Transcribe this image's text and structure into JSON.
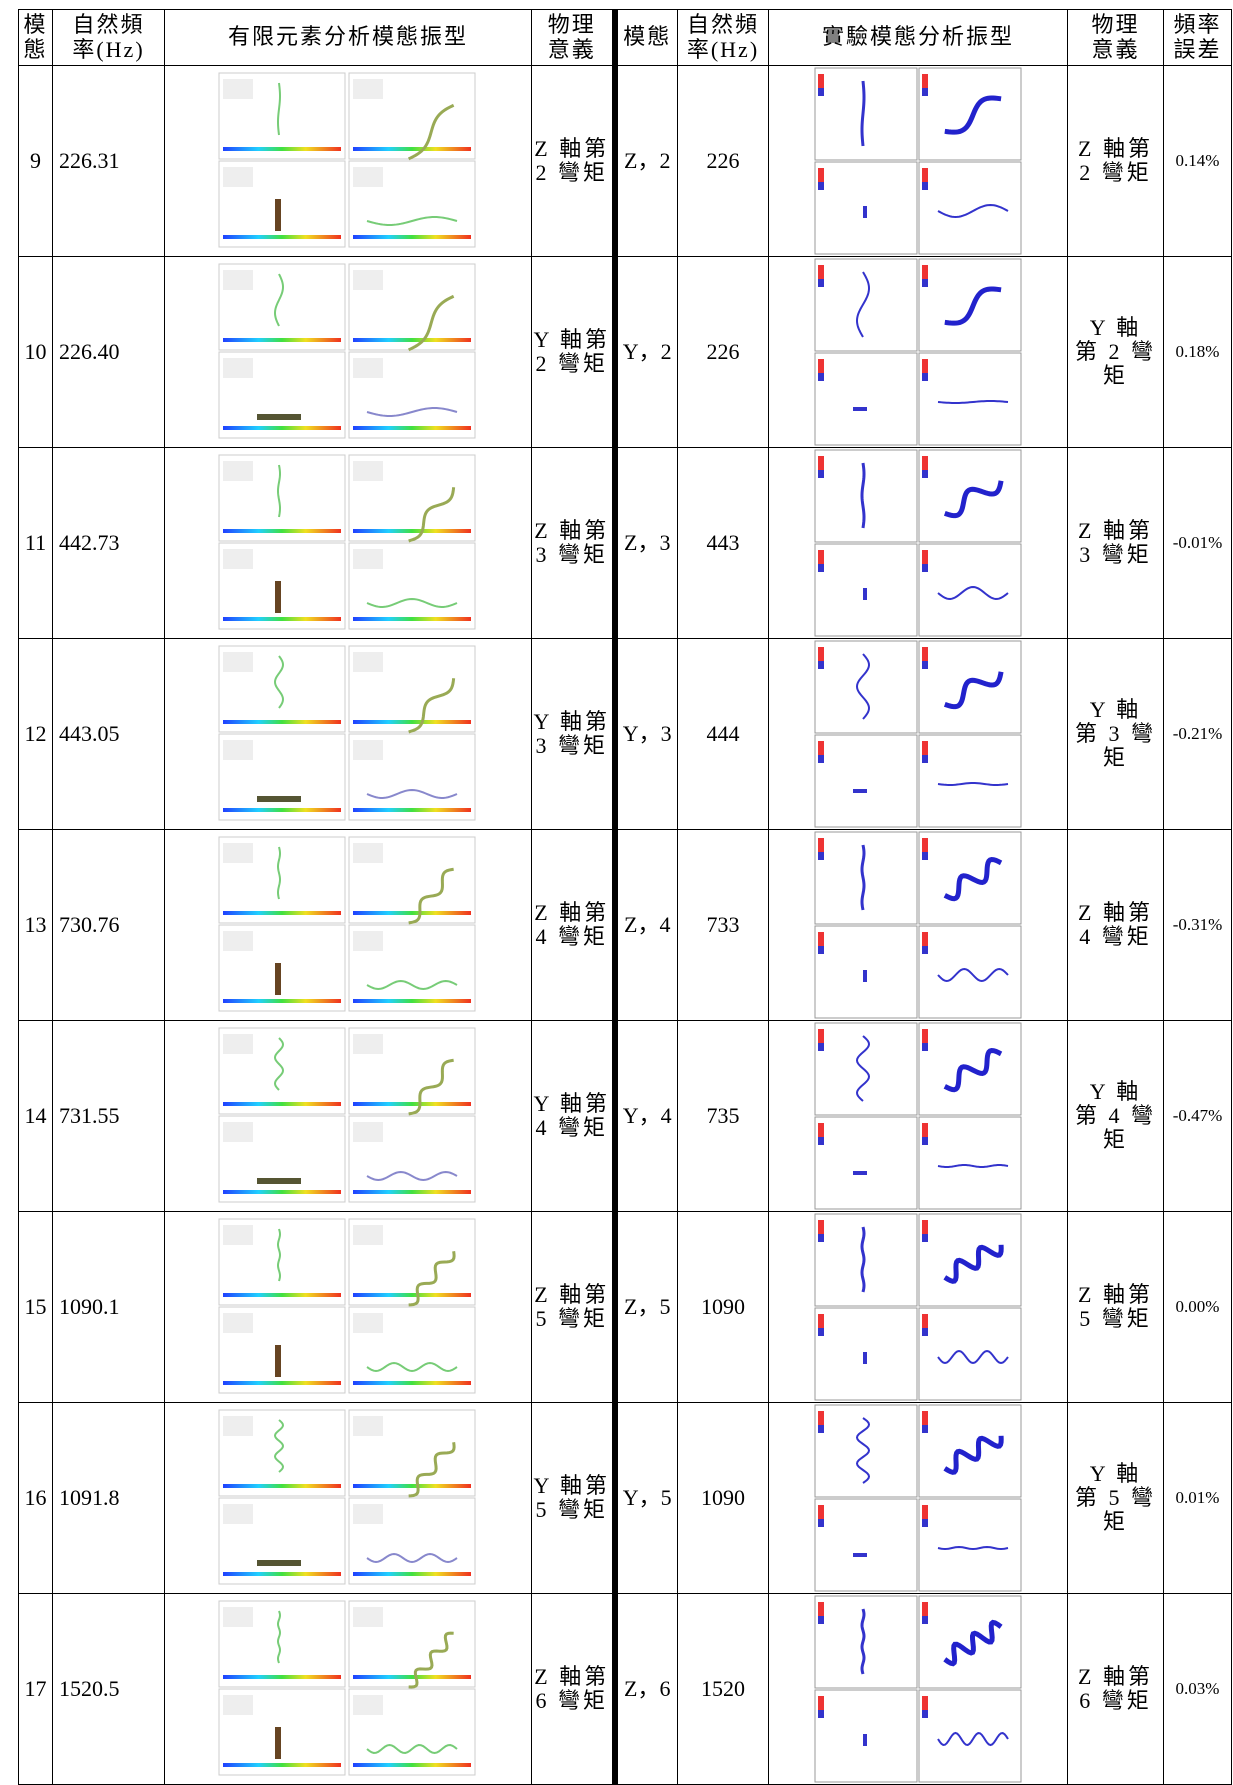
{
  "table": {
    "header": [
      "模\n態",
      "自然頻\n率(Hz)",
      "有限元素分析模態振型",
      "物理\n意義",
      "模態",
      "自然頻\n率(Hz)",
      "實驗模態分析振型",
      "物理\n意義",
      "頻率\n誤差"
    ],
    "rows": [
      [
        "9",
        "226.31",
        "Z 軸第\n2 彎矩",
        "Z，2",
        "226",
        "Z 軸第\n2 彎矩",
        "0.14%"
      ],
      [
        "10",
        "226.40",
        "Y 軸第\n2 彎矩",
        "Y，2",
        "226",
        "Y 軸\n第 2 彎\n矩",
        "0.18%"
      ],
      [
        "11",
        "442.73",
        "Z 軸第\n3 彎矩",
        "Z，3",
        "443",
        "Z 軸第\n3 彎矩",
        "-0.01%"
      ],
      [
        "12",
        "443.05",
        "Y 軸第\n3 彎矩",
        "Y，3",
        "444",
        "Y 軸\n第 3 彎\n矩",
        "-0.21%"
      ],
      [
        "13",
        "730.76",
        "Z 軸第\n4 彎矩",
        "Z，4",
        "733",
        "Z 軸第\n4 彎矩",
        "-0.31%"
      ],
      [
        "14",
        "731.55",
        "Y 軸第\n4 彎矩",
        "Y，4",
        "735",
        "Y 軸\n第 4 彎\n矩",
        "-0.47%"
      ],
      [
        "15",
        "1090.1",
        "Z 軸第\n5 彎矩",
        "Z，5",
        "1090",
        "Z 軸第\n5 彎矩",
        "0.00%"
      ],
      [
        "16",
        "1091.8",
        "Y 軸第\n5 彎矩",
        "Y，5",
        "1090",
        "Y 軸\n第 5 彎\n矩",
        "0.01%"
      ],
      [
        "17",
        "1520.5",
        "Z 軸第\n6 彎矩",
        "Z，6",
        "1520",
        "Z 軸第\n6 彎矩",
        "0.03%"
      ]
    ]
  }
}
